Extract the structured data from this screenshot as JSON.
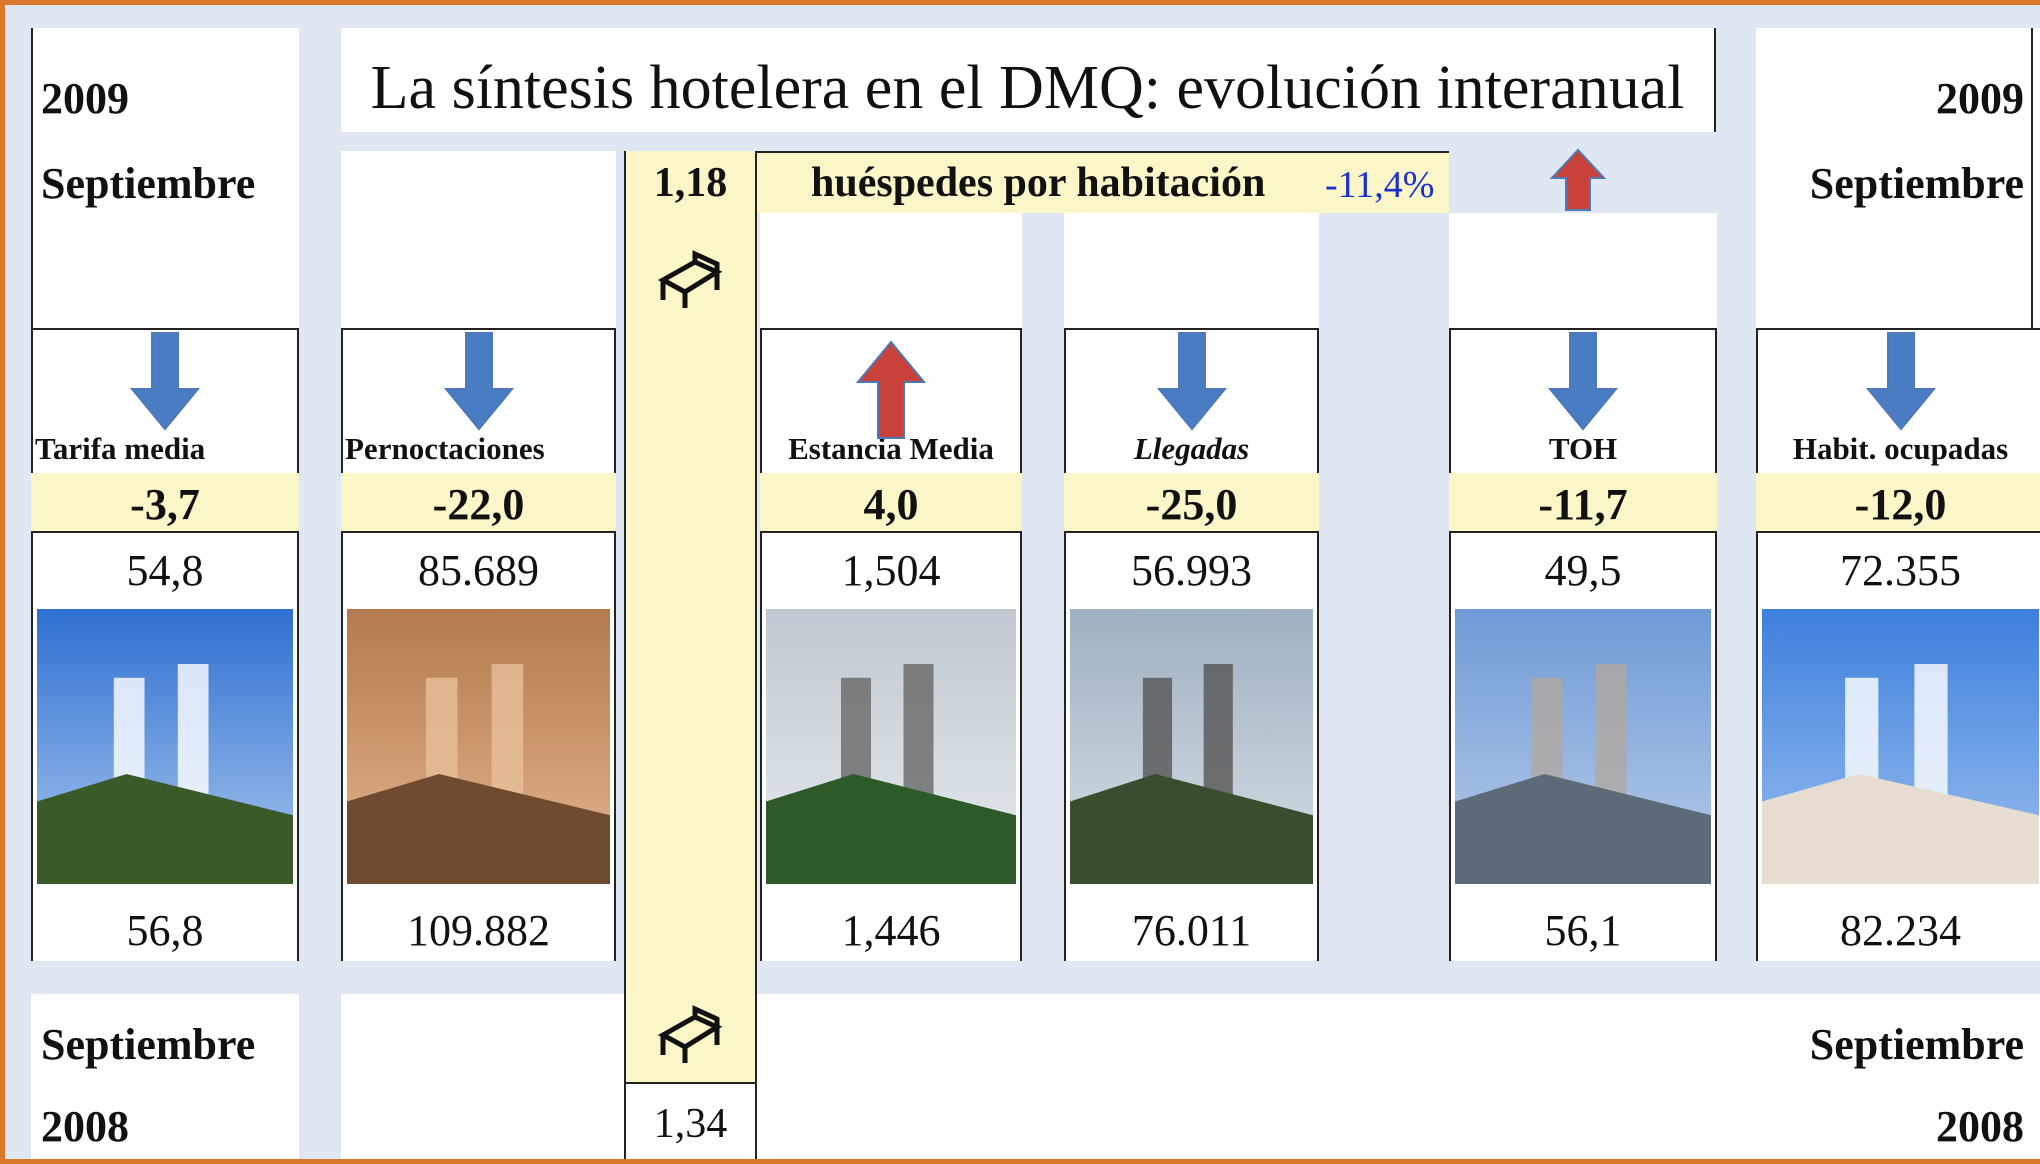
{
  "header": {
    "title": "La síntesis  hotelera en el DMQ: evolución interanual",
    "left": {
      "year": "2009",
      "month": "Septiembre"
    },
    "right": {
      "year": "2009",
      "month": "Septiembre"
    }
  },
  "footer": {
    "left": {
      "month": "Septiembre",
      "year": "2008"
    },
    "right": {
      "month": "Septiembre",
      "year": "2008"
    }
  },
  "guests_per_room": {
    "current": "1,18",
    "label": "huéspedes  por habitación",
    "change": "-11,4%",
    "previous": "1,34"
  },
  "indicators": [
    {
      "label": "Tarifa media",
      "change": "-3,7",
      "current": "54,8",
      "previous": "56,8"
    },
    {
      "label": "Pernoctaciones",
      "change": "-22,0",
      "current": "85.689",
      "previous": "109.882"
    },
    {
      "label": "Estancia Media",
      "change": "4,0",
      "current": "1,504",
      "previous": "1,446"
    },
    {
      "label": "Llegadas",
      "change": "-25,0",
      "current": "56.993",
      "previous": "76.011"
    },
    {
      "label": "TOH",
      "change": "-11,7",
      "current": "49,5",
      "previous": "56,1"
    },
    {
      "label": "Habit. ocupadas",
      "change": "-12,0",
      "current": "72.355",
      "previous": "82.234"
    }
  ]
}
